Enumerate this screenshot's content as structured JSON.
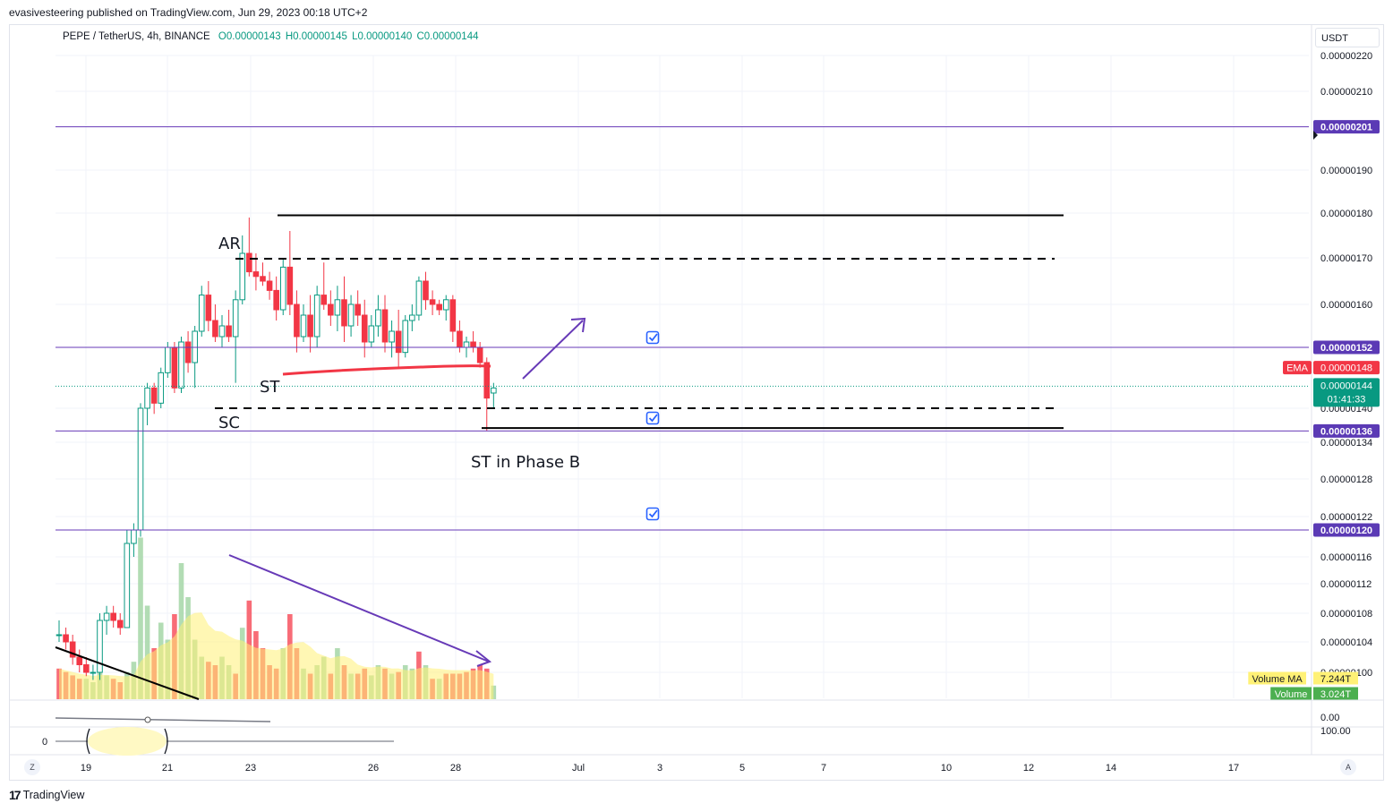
{
  "publisher_line": "evasivesteering published on TradingView.com, Jun 29, 2023 00:18 UTC+2",
  "legend": {
    "symbol": "PEPE / TetherUS, 4h, BINANCE",
    "open": "O0.00000143",
    "high": "H0.00000145",
    "low": "L0.00000140",
    "close": "C0.00000144"
  },
  "currency": "USDT",
  "footer_brand": "TradingView",
  "buttons": {
    "left": "Z",
    "right": "A"
  },
  "colors": {
    "up": "#089981",
    "down": "#f23645",
    "up_vol": "#a5d6a7",
    "down_vol": "#f7525f",
    "vol_ma": "#fff176",
    "purple": "#673ab7",
    "purple_label": "#5b3ab5",
    "ema": "#f23645",
    "check": "#2962ff"
  },
  "chart_data": {
    "type": "candlestick",
    "symbol": "PEPE / TetherUS",
    "timeframe": "4h",
    "exchange": "BINANCE",
    "price_axis_ticks": [
      "0.00000220",
      "0.00000210",
      "0.00000190",
      "0.00000180",
      "0.00000170",
      "0.00000160",
      "0.00000140",
      "0.00000134",
      "0.00000128",
      "0.00000122",
      "0.00000116",
      "0.00000112",
      "0.00000108",
      "0.00000104",
      "0.00000100"
    ],
    "date_axis_ticks": [
      "19",
      "21",
      "23",
      "26",
      "28",
      "Jul",
      "3",
      "5",
      "7",
      "10",
      "12",
      "14",
      "17"
    ],
    "price_labels": [
      {
        "kind": "horizontal_line",
        "value": "0.00000201",
        "color": "#5b3ab5"
      },
      {
        "kind": "horizontal_line",
        "value": "0.00000152",
        "color": "#5b3ab5"
      },
      {
        "kind": "ema",
        "name": "EMA",
        "value": "0.00000148",
        "color": "#f23645"
      },
      {
        "kind": "last_price",
        "value": "0.00000144",
        "countdown": "01:41:33",
        "color": "#089981"
      },
      {
        "kind": "horizontal_line",
        "value": "0.00000136",
        "color": "#5b3ab5"
      },
      {
        "kind": "horizontal_line",
        "value": "0.00000120",
        "color": "#5b3ab5"
      }
    ],
    "volume_labels": [
      {
        "name": "Volume MA",
        "value": "7.244T",
        "color": "#fff176"
      },
      {
        "name": "Volume",
        "value": "3.024T",
        "color": "#4caf50"
      }
    ],
    "oscillator_ticks": [
      "0.00",
      "100.00",
      "0"
    ],
    "annotations": [
      "AR",
      "ST",
      "SC",
      "ST in Phase B"
    ],
    "last_bar": {
      "open": 1.43e-06,
      "high": 1.45e-06,
      "low": 1.4e-06,
      "close": 1.44e-06
    },
    "candles": [
      [
        1.05,
        1.07,
        1.04,
        1.05
      ],
      [
        1.05,
        1.06,
        1.03,
        1.04
      ],
      [
        1.04,
        1.05,
        1.01,
        1.02
      ],
      [
        1.02,
        1.03,
        1.0,
        1.01
      ],
      [
        1.01,
        1.02,
        0.995,
        1.0
      ],
      [
        1.0,
        1.01,
        0.99,
        1.0
      ],
      [
        1.0,
        1.08,
        0.99,
        1.07
      ],
      [
        1.07,
        1.09,
        1.05,
        1.08
      ],
      [
        1.08,
        1.09,
        1.06,
        1.07
      ],
      [
        1.07,
        1.08,
        1.05,
        1.06
      ],
      [
        1.06,
        1.2,
        1.06,
        1.18
      ],
      [
        1.18,
        1.21,
        1.16,
        1.2
      ],
      [
        1.2,
        1.41,
        1.19,
        1.4
      ],
      [
        1.4,
        1.45,
        1.37,
        1.44
      ],
      [
        1.44,
        1.45,
        1.39,
        1.41
      ],
      [
        1.41,
        1.48,
        1.4,
        1.47
      ],
      [
        1.47,
        1.53,
        1.46,
        1.52
      ],
      [
        1.52,
        1.53,
        1.43,
        1.44
      ],
      [
        1.44,
        1.54,
        1.43,
        1.53
      ],
      [
        1.53,
        1.55,
        1.47,
        1.49
      ],
      [
        1.49,
        1.56,
        1.44,
        1.55
      ],
      [
        1.55,
        1.64,
        1.54,
        1.62
      ],
      [
        1.62,
        1.65,
        1.55,
        1.57
      ],
      [
        1.57,
        1.6,
        1.53,
        1.54
      ],
      [
        1.54,
        1.58,
        1.52,
        1.56
      ],
      [
        1.56,
        1.59,
        1.53,
        1.54
      ],
      [
        1.54,
        1.63,
        1.45,
        1.61
      ],
      [
        1.61,
        1.75,
        1.6,
        1.71
      ],
      [
        1.71,
        1.79,
        1.66,
        1.67
      ],
      [
        1.67,
        1.71,
        1.63,
        1.66
      ],
      [
        1.66,
        1.69,
        1.64,
        1.65
      ],
      [
        1.65,
        1.67,
        1.61,
        1.63
      ],
      [
        1.63,
        1.66,
        1.57,
        1.59
      ],
      [
        1.59,
        1.7,
        1.58,
        1.68
      ],
      [
        1.68,
        1.76,
        1.58,
        1.6
      ],
      [
        1.6,
        1.63,
        1.51,
        1.54
      ],
      [
        1.54,
        1.6,
        1.53,
        1.58
      ],
      [
        1.58,
        1.62,
        1.51,
        1.54
      ],
      [
        1.54,
        1.64,
        1.52,
        1.62
      ],
      [
        1.62,
        1.69,
        1.59,
        1.6
      ],
      [
        1.6,
        1.63,
        1.56,
        1.58
      ],
      [
        1.58,
        1.64,
        1.55,
        1.61
      ],
      [
        1.61,
        1.66,
        1.53,
        1.56
      ],
      [
        1.56,
        1.62,
        1.54,
        1.6
      ],
      [
        1.6,
        1.63,
        1.56,
        1.58
      ],
      [
        1.58,
        1.61,
        1.5,
        1.53
      ],
      [
        1.53,
        1.58,
        1.52,
        1.56
      ],
      [
        1.56,
        1.62,
        1.54,
        1.59
      ],
      [
        1.59,
        1.62,
        1.51,
        1.53
      ],
      [
        1.53,
        1.57,
        1.5,
        1.55
      ],
      [
        1.55,
        1.59,
        1.48,
        1.51
      ],
      [
        1.51,
        1.58,
        1.5,
        1.57
      ],
      [
        1.57,
        1.6,
        1.55,
        1.58
      ],
      [
        1.58,
        1.66,
        1.57,
        1.65
      ],
      [
        1.65,
        1.67,
        1.59,
        1.61
      ],
      [
        1.61,
        1.63,
        1.58,
        1.6
      ],
      [
        1.6,
        1.61,
        1.58,
        1.59
      ],
      [
        1.59,
        1.62,
        1.57,
        1.61
      ],
      [
        1.61,
        1.62,
        1.53,
        1.55
      ],
      [
        1.55,
        1.57,
        1.51,
        1.52
      ],
      [
        1.52,
        1.54,
        1.5,
        1.53
      ],
      [
        1.53,
        1.55,
        1.51,
        1.52
      ],
      [
        1.52,
        1.53,
        1.48,
        1.49
      ],
      [
        1.49,
        1.5,
        1.36,
        1.42
      ],
      [
        1.43,
        1.45,
        1.4,
        1.44
      ]
    ],
    "volumes": [
      {
        "v": 0.18,
        "up": false
      },
      {
        "v": 0.16,
        "up": false
      },
      {
        "v": 0.14,
        "up": false
      },
      {
        "v": 0.12,
        "up": false
      },
      {
        "v": 0.12,
        "up": true
      },
      {
        "v": 0.1,
        "up": true
      },
      {
        "v": 0.18,
        "up": true
      },
      {
        "v": 0.14,
        "up": true
      },
      {
        "v": 0.12,
        "up": false
      },
      {
        "v": 0.1,
        "up": false
      },
      {
        "v": 0.16,
        "up": true
      },
      {
        "v": 0.22,
        "up": true
      },
      {
        "v": 0.95,
        "up": true
      },
      {
        "v": 0.55,
        "up": true
      },
      {
        "v": 0.3,
        "up": false
      },
      {
        "v": 0.45,
        "up": true
      },
      {
        "v": 0.35,
        "up": true
      },
      {
        "v": 0.5,
        "up": false
      },
      {
        "v": 0.8,
        "up": true
      },
      {
        "v": 0.6,
        "up": true
      },
      {
        "v": 0.35,
        "up": true
      },
      {
        "v": 0.25,
        "up": true
      },
      {
        "v": 0.22,
        "up": false
      },
      {
        "v": 0.2,
        "up": false
      },
      {
        "v": 0.25,
        "up": true
      },
      {
        "v": 0.2,
        "up": true
      },
      {
        "v": 0.15,
        "up": false
      },
      {
        "v": 0.42,
        "up": true
      },
      {
        "v": 0.58,
        "up": false
      },
      {
        "v": 0.4,
        "up": false
      },
      {
        "v": 0.3,
        "up": false
      },
      {
        "v": 0.2,
        "up": false
      },
      {
        "v": 0.18,
        "up": false
      },
      {
        "v": 0.3,
        "up": true
      },
      {
        "v": 0.5,
        "up": false
      },
      {
        "v": 0.3,
        "up": false
      },
      {
        "v": 0.18,
        "up": true
      },
      {
        "v": 0.15,
        "up": false
      },
      {
        "v": 0.2,
        "up": true
      },
      {
        "v": 0.25,
        "up": true
      },
      {
        "v": 0.15,
        "up": false
      },
      {
        "v": 0.3,
        "up": true
      },
      {
        "v": 0.2,
        "up": false
      },
      {
        "v": 0.15,
        "up": true
      },
      {
        "v": 0.15,
        "up": false
      },
      {
        "v": 0.18,
        "up": false
      },
      {
        "v": 0.14,
        "up": true
      },
      {
        "v": 0.2,
        "up": true
      },
      {
        "v": 0.18,
        "up": false
      },
      {
        "v": 0.15,
        "up": true
      },
      {
        "v": 0.16,
        "up": false
      },
      {
        "v": 0.2,
        "up": true
      },
      {
        "v": 0.18,
        "up": true
      },
      {
        "v": 0.28,
        "up": false
      },
      {
        "v": 0.2,
        "up": true
      },
      {
        "v": 0.12,
        "up": false
      },
      {
        "v": 0.12,
        "up": true
      },
      {
        "v": 0.15,
        "up": false
      },
      {
        "v": 0.15,
        "up": false
      },
      {
        "v": 0.15,
        "up": false
      },
      {
        "v": 0.16,
        "up": false
      },
      {
        "v": 0.18,
        "up": false
      },
      {
        "v": 0.2,
        "up": false
      },
      {
        "v": 0.18,
        "up": false
      },
      {
        "v": 0.08,
        "up": true
      }
    ]
  }
}
